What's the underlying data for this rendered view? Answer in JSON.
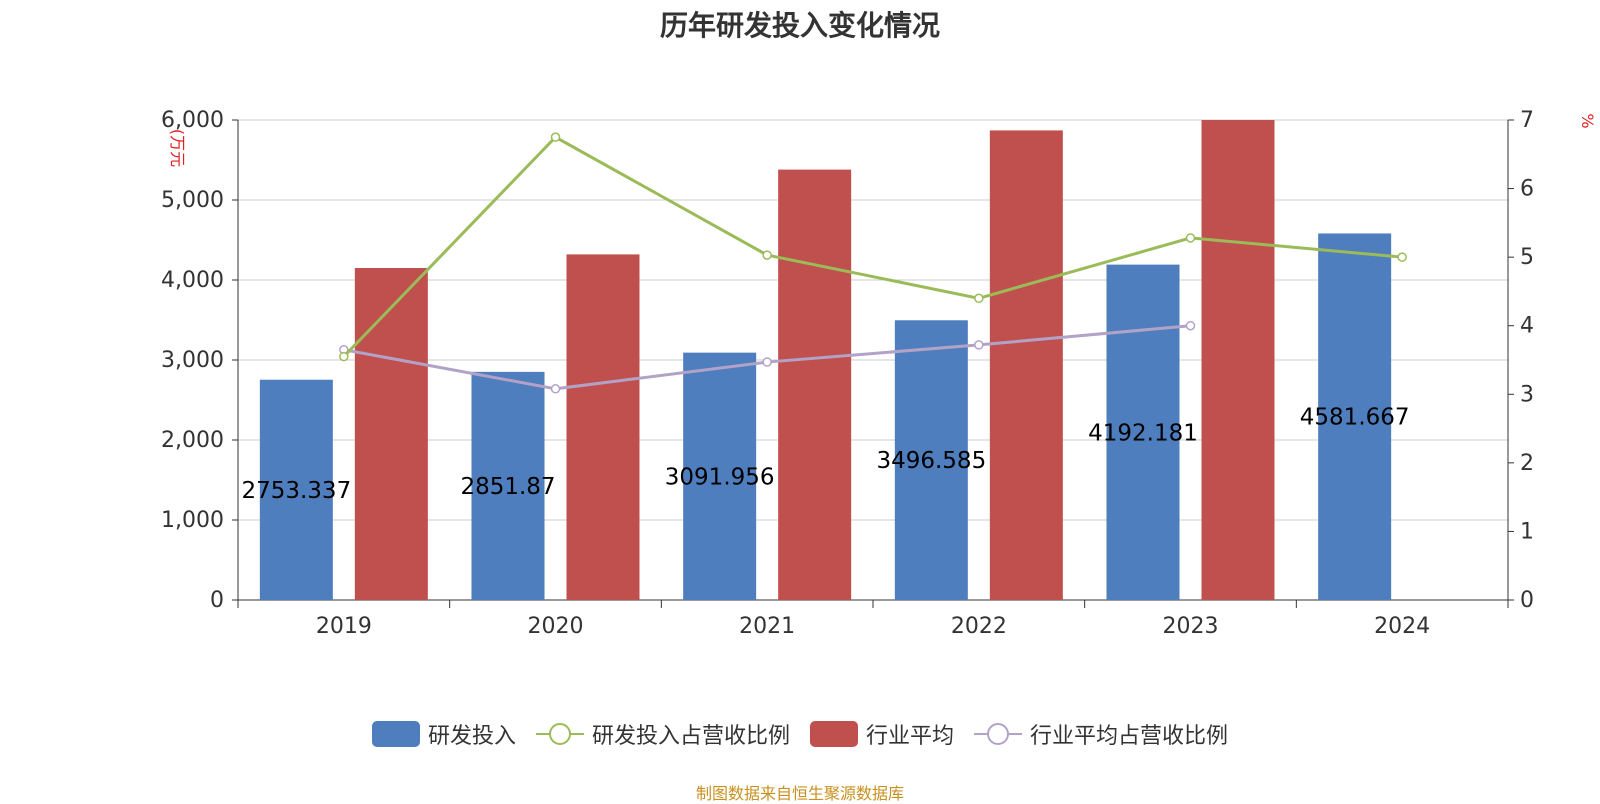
{
  "chart_data": {
    "type": "bar",
    "title": "历年研发投入变化情况",
    "categories": [
      "2019",
      "2020",
      "2021",
      "2022",
      "2023",
      "2024"
    ],
    "y_left": {
      "label": "(万元",
      "ticks": [
        "0",
        "1,000",
        "2,000",
        "3,000",
        "4,000",
        "5,000",
        "6,000"
      ],
      "ylim": [
        0,
        6000
      ]
    },
    "y_right": {
      "label": "%",
      "ticks": [
        "0",
        "1",
        "2",
        "3",
        "4",
        "5",
        "6",
        "7"
      ],
      "ylim": [
        0,
        7
      ]
    },
    "series": [
      {
        "name": "研发投入",
        "type": "bar",
        "axis": "left",
        "color": "#4e7ebd",
        "values": [
          2753.337,
          2851.87,
          3091.956,
          3496.585,
          4192.181,
          4581.667
        ],
        "labels": [
          "2753.337",
          "2851.87",
          "3091.956",
          "3496.585",
          "4192.181",
          "4581.667"
        ]
      },
      {
        "name": "研发投入占营收比例",
        "type": "line",
        "axis": "right",
        "color": "#9bbb59",
        "values": [
          3.55,
          6.75,
          5.03,
          4.4,
          5.28,
          5.0
        ]
      },
      {
        "name": "行业平均",
        "type": "bar",
        "axis": "left",
        "color": "#c0504d",
        "values": [
          4150,
          4320,
          5380,
          5870,
          6000,
          null
        ]
      },
      {
        "name": "行业平均占营收比例",
        "type": "line",
        "axis": "right",
        "color": "#b3a2c7",
        "values": [
          3.65,
          3.08,
          3.47,
          3.72,
          4.0,
          null
        ]
      }
    ],
    "grid": true,
    "legend_position": "bottom"
  },
  "source_text": "制图数据来自恒生聚源数据库"
}
